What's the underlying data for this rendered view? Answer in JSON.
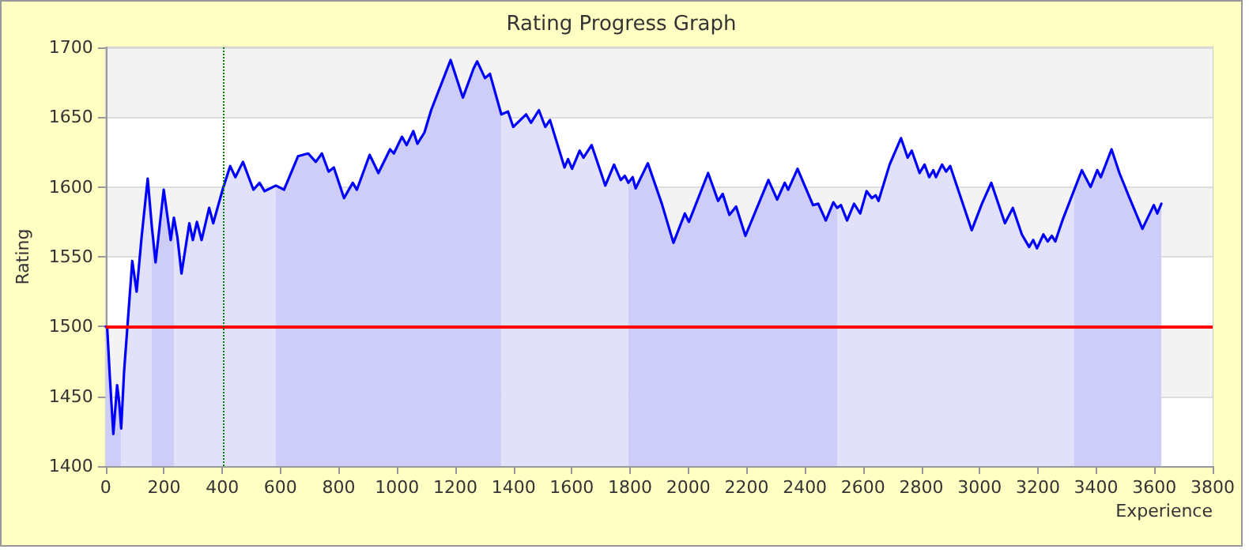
{
  "chart_data": {
    "type": "line",
    "title": "Rating Progress Graph",
    "xlabel": "Experience",
    "ylabel": "Rating",
    "x": [
      0,
      5,
      14,
      26,
      39,
      46,
      53,
      63,
      79,
      91,
      106,
      123,
      144,
      158,
      171,
      199,
      223,
      234,
      246,
      260,
      287,
      299,
      313,
      329,
      355,
      369,
      401,
      427,
      445,
      471,
      507,
      528,
      545,
      584,
      612,
      660,
      695,
      721,
      742,
      765,
      783,
      818,
      848,
      862,
      906,
      936,
      976,
      989,
      1017,
      1033,
      1056,
      1070,
      1094,
      1117,
      1184,
      1226,
      1263,
      1275,
      1302,
      1319,
      1358,
      1381,
      1399,
      1443,
      1460,
      1487,
      1509,
      1525,
      1575,
      1587,
      1601,
      1627,
      1640,
      1668,
      1715,
      1745,
      1768,
      1782,
      1794,
      1809,
      1819,
      1861,
      1909,
      1949,
      1988,
      2002,
      2068,
      2102,
      2118,
      2141,
      2164,
      2196,
      2275,
      2305,
      2331,
      2343,
      2375,
      2428,
      2446,
      2472,
      2498,
      2511,
      2524,
      2545,
      2569,
      2590,
      2612,
      2630,
      2643,
      2653,
      2691,
      2730,
      2753,
      2767,
      2794,
      2811,
      2827,
      2841,
      2850,
      2871,
      2885,
      2899,
      2973,
      3008,
      3040,
      3087,
      3114,
      3145,
      3170,
      3184,
      3197,
      3219,
      3234,
      3248,
      3260,
      3286,
      3325,
      3351,
      3381,
      3404,
      3416,
      3453,
      3480,
      3515,
      3559,
      3598,
      3610,
      3624
    ],
    "series": [
      {
        "color": "#0000ff",
        "values": [
          1500,
          1499,
          1464,
          1423,
          1458,
          1446,
          1427,
          1468,
          1513,
          1547,
          1525,
          1564,
          1606,
          1572,
          1546,
          1598,
          1562,
          1578,
          1564,
          1538,
          1574,
          1562,
          1575,
          1562,
          1585,
          1574,
          1598,
          1615,
          1607,
          1618,
          1598,
          1603,
          1597,
          1601,
          1598,
          1622,
          1624,
          1618,
          1624,
          1611,
          1614,
          1592,
          1603,
          1598,
          1623,
          1610,
          1627,
          1624,
          1636,
          1630,
          1640,
          1631,
          1639,
          1655,
          1691,
          1664,
          1685,
          1690,
          1678,
          1681,
          1652,
          1654,
          1643,
          1652,
          1646,
          1655,
          1643,
          1648,
          1614,
          1620,
          1613,
          1626,
          1621,
          1630,
          1601,
          1616,
          1605,
          1608,
          1603,
          1607,
          1599,
          1617,
          1588,
          1560,
          1581,
          1575,
          1610,
          1590,
          1595,
          1580,
          1586,
          1565,
          1605,
          1591,
          1603,
          1598,
          1613,
          1587,
          1588,
          1576,
          1589,
          1585,
          1587,
          1576,
          1588,
          1581,
          1597,
          1592,
          1594,
          1590,
          1616,
          1635,
          1621,
          1626,
          1610,
          1616,
          1607,
          1612,
          1607,
          1616,
          1611,
          1615,
          1569,
          1588,
          1603,
          1574,
          1585,
          1566,
          1557,
          1562,
          1556,
          1566,
          1561,
          1565,
          1561,
          1577,
          1598,
          1612,
          1600,
          1612,
          1607,
          1627,
          1610,
          1592,
          1570,
          1587,
          1581,
          1588
        ]
      },
      {
        "type": "area",
        "color": "#cdcdf8",
        "x": [
          0,
          5,
          14,
          26,
          39,
          46,
          53
        ],
        "values": [
          1500,
          1499,
          1464,
          1423,
          1458,
          1446,
          1427
        ]
      },
      {
        "type": "area",
        "color": "#e1e1fa",
        "x": [
          53,
          63,
          79,
          91,
          106,
          123,
          144,
          158
        ],
        "values": [
          1427,
          1468,
          1513,
          1547,
          1525,
          1564,
          1606,
          1572
        ]
      },
      {
        "type": "area",
        "color": "#cdcdf8",
        "x": [
          158,
          171,
          199,
          223,
          234
        ],
        "values": [
          1572,
          1546,
          1598,
          1562,
          1578
        ]
      },
      {
        "type": "area",
        "color": "#e1e1fa",
        "x": [
          234,
          246,
          260,
          287,
          299,
          313,
          329,
          355,
          369,
          401,
          427,
          445,
          471,
          507,
          528,
          545,
          584
        ],
        "values": [
          1578,
          1564,
          1538,
          1574,
          1562,
          1575,
          1562,
          1585,
          1574,
          1598,
          1615,
          1607,
          1618,
          1598,
          1603,
          1597,
          1601
        ]
      },
      {
        "type": "area",
        "color": "#cdcdf8",
        "x": [
          584,
          612,
          660,
          695,
          721,
          742,
          765,
          783,
          818,
          848,
          862,
          906,
          936,
          976,
          989,
          1017,
          1033,
          1056,
          1070,
          1094,
          1117,
          1184,
          1226,
          1263,
          1275,
          1302,
          1319,
          1358
        ],
        "values": [
          1601,
          1598,
          1622,
          1624,
          1618,
          1624,
          1611,
          1614,
          1592,
          1603,
          1598,
          1623,
          1610,
          1627,
          1624,
          1636,
          1630,
          1640,
          1631,
          1639,
          1655,
          1691,
          1664,
          1685,
          1690,
          1678,
          1681,
          1652
        ]
      },
      {
        "type": "area",
        "color": "#e1e1fa",
        "x": [
          1358,
          1381,
          1399,
          1443,
          1460,
          1487,
          1509,
          1525,
          1575,
          1587,
          1601,
          1627,
          1640,
          1668,
          1715,
          1745,
          1768,
          1782,
          1794
        ],
        "values": [
          1652,
          1654,
          1643,
          1652,
          1646,
          1655,
          1643,
          1648,
          1614,
          1620,
          1613,
          1626,
          1621,
          1630,
          1601,
          1616,
          1605,
          1608,
          1603
        ]
      },
      {
        "type": "area",
        "color": "#cdcdf8",
        "x": [
          1794,
          1809,
          1819,
          1861,
          1909,
          1949,
          1988,
          2002,
          2068,
          2102,
          2118,
          2141,
          2164,
          2196,
          2275,
          2305,
          2331,
          2343,
          2375,
          2428,
          2446,
          2472,
          2498,
          2511
        ],
        "values": [
          1603,
          1607,
          1599,
          1617,
          1588,
          1560,
          1581,
          1575,
          1610,
          1590,
          1595,
          1580,
          1586,
          1565,
          1605,
          1591,
          1603,
          1598,
          1613,
          1587,
          1588,
          1576,
          1589,
          1585
        ]
      },
      {
        "type": "area",
        "color": "#e1e1fa",
        "x": [
          2511,
          2524,
          2545,
          2569,
          2590,
          2612,
          2630,
          2643,
          2653,
          2691,
          2730,
          2753,
          2767,
          2794,
          2811,
          2827,
          2841,
          2850,
          2871,
          2885,
          2899,
          2973,
          3008,
          3040,
          3087,
          3114,
          3145,
          3170,
          3184,
          3197,
          3219,
          3234,
          3248,
          3260,
          3286,
          3325
        ],
        "values": [
          1585,
          1587,
          1576,
          1588,
          1581,
          1597,
          1592,
          1594,
          1590,
          1616,
          1635,
          1621,
          1626,
          1610,
          1616,
          1607,
          1612,
          1607,
          1616,
          1611,
          1615,
          1569,
          1588,
          1603,
          1574,
          1585,
          1566,
          1557,
          1562,
          1556,
          1566,
          1561,
          1565,
          1561,
          1577,
          1598
        ]
      },
      {
        "type": "area",
        "color": "#cdcdf8",
        "x": [
          3325,
          3351,
          3381,
          3404,
          3416,
          3453,
          3480,
          3515,
          3559,
          3598,
          3610,
          3624
        ],
        "values": [
          1598,
          1612,
          1600,
          1612,
          1607,
          1627,
          1610,
          1592,
          1570,
          1587,
          1581,
          1588
        ]
      }
    ],
    "xlim": [
      0,
      3800
    ],
    "xticks": [
      0,
      200,
      400,
      600,
      800,
      1000,
      1200,
      1400,
      1600,
      1800,
      2000,
      2200,
      2400,
      2600,
      2800,
      3000,
      3200,
      3400,
      3600,
      3800
    ],
    "ylim": [
      1400,
      1700
    ],
    "yticks": [
      1400,
      1450,
      1500,
      1550,
      1600,
      1650,
      1700
    ],
    "grid": "y",
    "marker": "none",
    "ref_lines": [
      {
        "axis": "y",
        "value": 1500,
        "color": "#ff0000",
        "line_style": "solid"
      },
      {
        "axis": "x",
        "value": 405,
        "color": "#008000",
        "line_style": "dotted"
      }
    ]
  }
}
